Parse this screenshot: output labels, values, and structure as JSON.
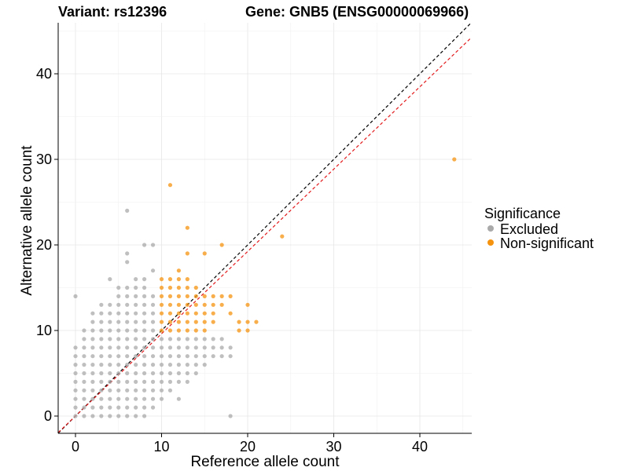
{
  "chart_data": {
    "type": "scatter",
    "title_variant": "Variant: rs12396",
    "title_gene": "Gene: GNB5 (ENSG00000069966)",
    "xlabel": "Reference allele count",
    "ylabel": "Alternative allele count",
    "xlim": [
      -2,
      46
    ],
    "ylim": [
      -2,
      46
    ],
    "x_ticks": [
      0,
      10,
      20,
      30,
      40
    ],
    "y_ticks": [
      0,
      10,
      20,
      30,
      40
    ],
    "grid": true,
    "legend": {
      "title": "Significance",
      "position": "right",
      "entries": [
        {
          "name": "Excluded",
          "color": "#aaaaaa"
        },
        {
          "name": "Non-significant",
          "color": "#f5930f"
        }
      ]
    },
    "reference_lines": [
      {
        "name": "identity",
        "slope": 1,
        "intercept": 0,
        "color": "#000000",
        "dash": true
      },
      {
        "name": "fit",
        "slope": 0.962,
        "intercept": 0,
        "color": "#e31a1c",
        "dash": true
      }
    ],
    "series": [
      {
        "name": "Excluded",
        "color": "#aaaaaa",
        "points": [
          [
            0,
            0
          ],
          [
            0,
            1
          ],
          [
            0,
            2
          ],
          [
            0,
            3
          ],
          [
            0,
            4
          ],
          [
            0,
            5
          ],
          [
            0,
            6
          ],
          [
            0,
            7
          ],
          [
            0,
            8
          ],
          [
            0,
            14
          ],
          [
            1,
            0
          ],
          [
            1,
            1
          ],
          [
            1,
            2
          ],
          [
            1,
            3
          ],
          [
            1,
            4
          ],
          [
            1,
            5
          ],
          [
            1,
            6
          ],
          [
            1,
            7
          ],
          [
            1,
            8
          ],
          [
            1,
            9
          ],
          [
            1,
            10
          ],
          [
            2,
            0
          ],
          [
            2,
            1
          ],
          [
            2,
            2
          ],
          [
            2,
            3
          ],
          [
            2,
            4
          ],
          [
            2,
            5
          ],
          [
            2,
            6
          ],
          [
            2,
            7
          ],
          [
            2,
            8
          ],
          [
            2,
            9
          ],
          [
            2,
            10
          ],
          [
            2,
            11
          ],
          [
            2,
            12
          ],
          [
            3,
            0
          ],
          [
            3,
            1
          ],
          [
            3,
            2
          ],
          [
            3,
            3
          ],
          [
            3,
            4
          ],
          [
            3,
            5
          ],
          [
            3,
            6
          ],
          [
            3,
            7
          ],
          [
            3,
            8
          ],
          [
            3,
            9
          ],
          [
            3,
            10
          ],
          [
            3,
            11
          ],
          [
            3,
            12
          ],
          [
            3,
            13
          ],
          [
            4,
            0
          ],
          [
            4,
            1
          ],
          [
            4,
            2
          ],
          [
            4,
            3
          ],
          [
            4,
            4
          ],
          [
            4,
            5
          ],
          [
            4,
            6
          ],
          [
            4,
            7
          ],
          [
            4,
            8
          ],
          [
            4,
            9
          ],
          [
            4,
            10
          ],
          [
            4,
            11
          ],
          [
            4,
            12
          ],
          [
            4,
            13
          ],
          [
            4,
            16
          ],
          [
            5,
            0
          ],
          [
            5,
            1
          ],
          [
            5,
            2
          ],
          [
            5,
            3
          ],
          [
            5,
            4
          ],
          [
            5,
            5
          ],
          [
            5,
            6
          ],
          [
            5,
            7
          ],
          [
            5,
            8
          ],
          [
            5,
            9
          ],
          [
            5,
            10
          ],
          [
            5,
            11
          ],
          [
            5,
            12
          ],
          [
            5,
            13
          ],
          [
            5,
            14
          ],
          [
            5,
            15
          ],
          [
            6,
            0
          ],
          [
            6,
            1
          ],
          [
            6,
            2
          ],
          [
            6,
            3
          ],
          [
            6,
            4
          ],
          [
            6,
            5
          ],
          [
            6,
            6
          ],
          [
            6,
            7
          ],
          [
            6,
            8
          ],
          [
            6,
            9
          ],
          [
            6,
            10
          ],
          [
            6,
            11
          ],
          [
            6,
            12
          ],
          [
            6,
            13
          ],
          [
            6,
            14
          ],
          [
            6,
            15
          ],
          [
            6,
            18
          ],
          [
            6,
            19
          ],
          [
            6,
            24
          ],
          [
            7,
            0
          ],
          [
            7,
            1
          ],
          [
            7,
            2
          ],
          [
            7,
            3
          ],
          [
            7,
            4
          ],
          [
            7,
            5
          ],
          [
            7,
            6
          ],
          [
            7,
            7
          ],
          [
            7,
            8
          ],
          [
            7,
            9
          ],
          [
            7,
            10
          ],
          [
            7,
            11
          ],
          [
            7,
            12
          ],
          [
            7,
            13
          ],
          [
            7,
            14
          ],
          [
            7,
            15
          ],
          [
            7,
            16
          ],
          [
            8,
            0
          ],
          [
            8,
            1
          ],
          [
            8,
            2
          ],
          [
            8,
            3
          ],
          [
            8,
            4
          ],
          [
            8,
            5
          ],
          [
            8,
            6
          ],
          [
            8,
            7
          ],
          [
            8,
            8
          ],
          [
            8,
            9
          ],
          [
            8,
            10
          ],
          [
            8,
            11
          ],
          [
            8,
            12
          ],
          [
            8,
            13
          ],
          [
            8,
            14
          ],
          [
            8,
            15
          ],
          [
            8,
            16
          ],
          [
            8,
            20
          ],
          [
            9,
            1
          ],
          [
            9,
            2
          ],
          [
            9,
            3
          ],
          [
            9,
            4
          ],
          [
            9,
            5
          ],
          [
            9,
            6
          ],
          [
            9,
            7
          ],
          [
            9,
            8
          ],
          [
            9,
            9
          ],
          [
            9,
            10
          ],
          [
            9,
            11
          ],
          [
            9,
            12
          ],
          [
            9,
            13
          ],
          [
            9,
            14
          ],
          [
            9,
            17
          ],
          [
            9,
            20
          ],
          [
            10,
            2
          ],
          [
            10,
            3
          ],
          [
            10,
            4
          ],
          [
            10,
            5
          ],
          [
            10,
            6
          ],
          [
            10,
            7
          ],
          [
            10,
            8
          ],
          [
            10,
            9
          ],
          [
            11,
            3
          ],
          [
            11,
            4
          ],
          [
            11,
            5
          ],
          [
            11,
            6
          ],
          [
            11,
            7
          ],
          [
            11,
            8
          ],
          [
            11,
            9
          ],
          [
            12,
            2
          ],
          [
            12,
            4
          ],
          [
            12,
            5
          ],
          [
            12,
            6
          ],
          [
            12,
            7
          ],
          [
            12,
            8
          ],
          [
            12,
            9
          ],
          [
            13,
            4
          ],
          [
            13,
            5
          ],
          [
            13,
            6
          ],
          [
            13,
            7
          ],
          [
            13,
            8
          ],
          [
            13,
            9
          ],
          [
            14,
            5
          ],
          [
            14,
            6
          ],
          [
            14,
            7
          ],
          [
            14,
            8
          ],
          [
            14,
            9
          ],
          [
            15,
            6
          ],
          [
            15,
            7
          ],
          [
            15,
            8
          ],
          [
            15,
            9
          ],
          [
            16,
            8
          ],
          [
            16,
            9
          ],
          [
            16,
            7
          ],
          [
            17,
            7
          ],
          [
            17,
            8
          ],
          [
            17,
            9
          ],
          [
            18,
            7
          ],
          [
            18,
            8
          ],
          [
            18,
            0
          ]
        ]
      },
      {
        "name": "Non-significant",
        "color": "#f5930f",
        "points": [
          [
            10,
            10
          ],
          [
            10,
            11
          ],
          [
            10,
            12
          ],
          [
            10,
            13
          ],
          [
            10,
            14
          ],
          [
            10,
            15
          ],
          [
            10,
            16
          ],
          [
            11,
            10
          ],
          [
            11,
            11
          ],
          [
            11,
            12
          ],
          [
            11,
            13
          ],
          [
            11,
            14
          ],
          [
            11,
            15
          ],
          [
            11,
            16
          ],
          [
            11,
            27
          ],
          [
            12,
            10
          ],
          [
            12,
            11
          ],
          [
            12,
            12
          ],
          [
            12,
            13
          ],
          [
            12,
            14
          ],
          [
            12,
            15
          ],
          [
            12,
            16
          ],
          [
            12,
            17
          ],
          [
            13,
            10
          ],
          [
            13,
            11
          ],
          [
            13,
            12
          ],
          [
            13,
            13
          ],
          [
            13,
            14
          ],
          [
            13,
            15
          ],
          [
            13,
            16
          ],
          [
            13,
            19
          ],
          [
            13,
            22
          ],
          [
            14,
            10
          ],
          [
            14,
            11
          ],
          [
            14,
            12
          ],
          [
            14,
            13
          ],
          [
            14,
            14
          ],
          [
            14,
            15
          ],
          [
            15,
            10
          ],
          [
            15,
            11
          ],
          [
            15,
            12
          ],
          [
            15,
            13
          ],
          [
            15,
            14
          ],
          [
            15,
            19
          ],
          [
            16,
            11
          ],
          [
            16,
            12
          ],
          [
            16,
            13
          ],
          [
            16,
            14
          ],
          [
            17,
            13
          ],
          [
            17,
            14
          ],
          [
            17,
            20
          ],
          [
            18,
            12
          ],
          [
            18,
            14
          ],
          [
            19,
            10
          ],
          [
            19,
            11
          ],
          [
            20,
            10
          ],
          [
            20,
            11
          ],
          [
            20,
            13
          ],
          [
            21,
            11
          ],
          [
            24,
            21
          ],
          [
            44,
            30
          ]
        ]
      }
    ]
  }
}
